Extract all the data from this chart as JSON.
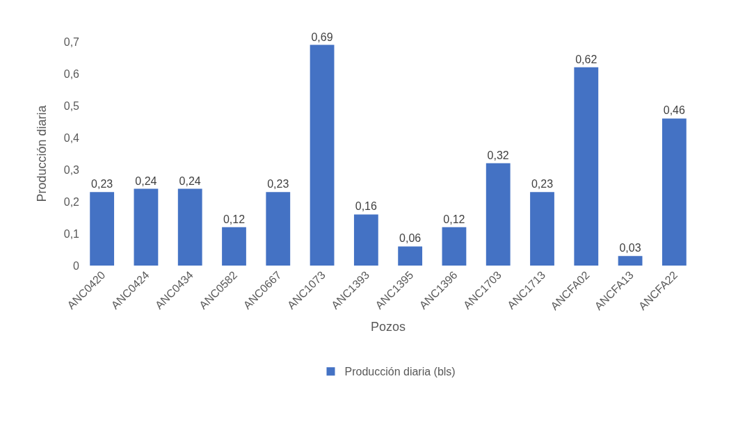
{
  "chart_data": {
    "type": "bar",
    "xlabel": "Pozos",
    "ylabel": "Producción diaria",
    "categories": [
      "ANC0420",
      "ANC0424",
      "ANC0434",
      "ANC0582",
      "ANC0667",
      "ANC1073",
      "ANC1393",
      "ANC1395",
      "ANC1396",
      "ANC1703",
      "ANC1713",
      "ANCFA02",
      "ANCFA13",
      "ANCFA22"
    ],
    "series": [
      {
        "name": "Producción diaria (bls)",
        "color": "#4472c4",
        "values": [
          0.23,
          0.24,
          0.24,
          0.12,
          0.23,
          0.69,
          0.16,
          0.06,
          0.12,
          0.32,
          0.23,
          0.62,
          0.03,
          0.46
        ],
        "value_labels": [
          "0,23",
          "0,24",
          "0,24",
          "0,12",
          "0,23",
          "0,69",
          "0,16",
          "0,06",
          "0,12",
          "0,32",
          "0,23",
          "0,62",
          "0,03",
          "0,46"
        ]
      }
    ],
    "ylim": [
      0,
      0.7
    ],
    "yticks": [
      {
        "value": 0,
        "label": "0"
      },
      {
        "value": 0.1,
        "label": "0,1"
      },
      {
        "value": 0.2,
        "label": "0,2"
      },
      {
        "value": 0.3,
        "label": "0,3"
      },
      {
        "value": 0.4,
        "label": "0,4"
      },
      {
        "value": 0.5,
        "label": "0,5"
      },
      {
        "value": 0.6,
        "label": "0,6"
      },
      {
        "value": 0.7,
        "label": "0,7"
      }
    ],
    "grid": false,
    "legend": "bottom"
  }
}
